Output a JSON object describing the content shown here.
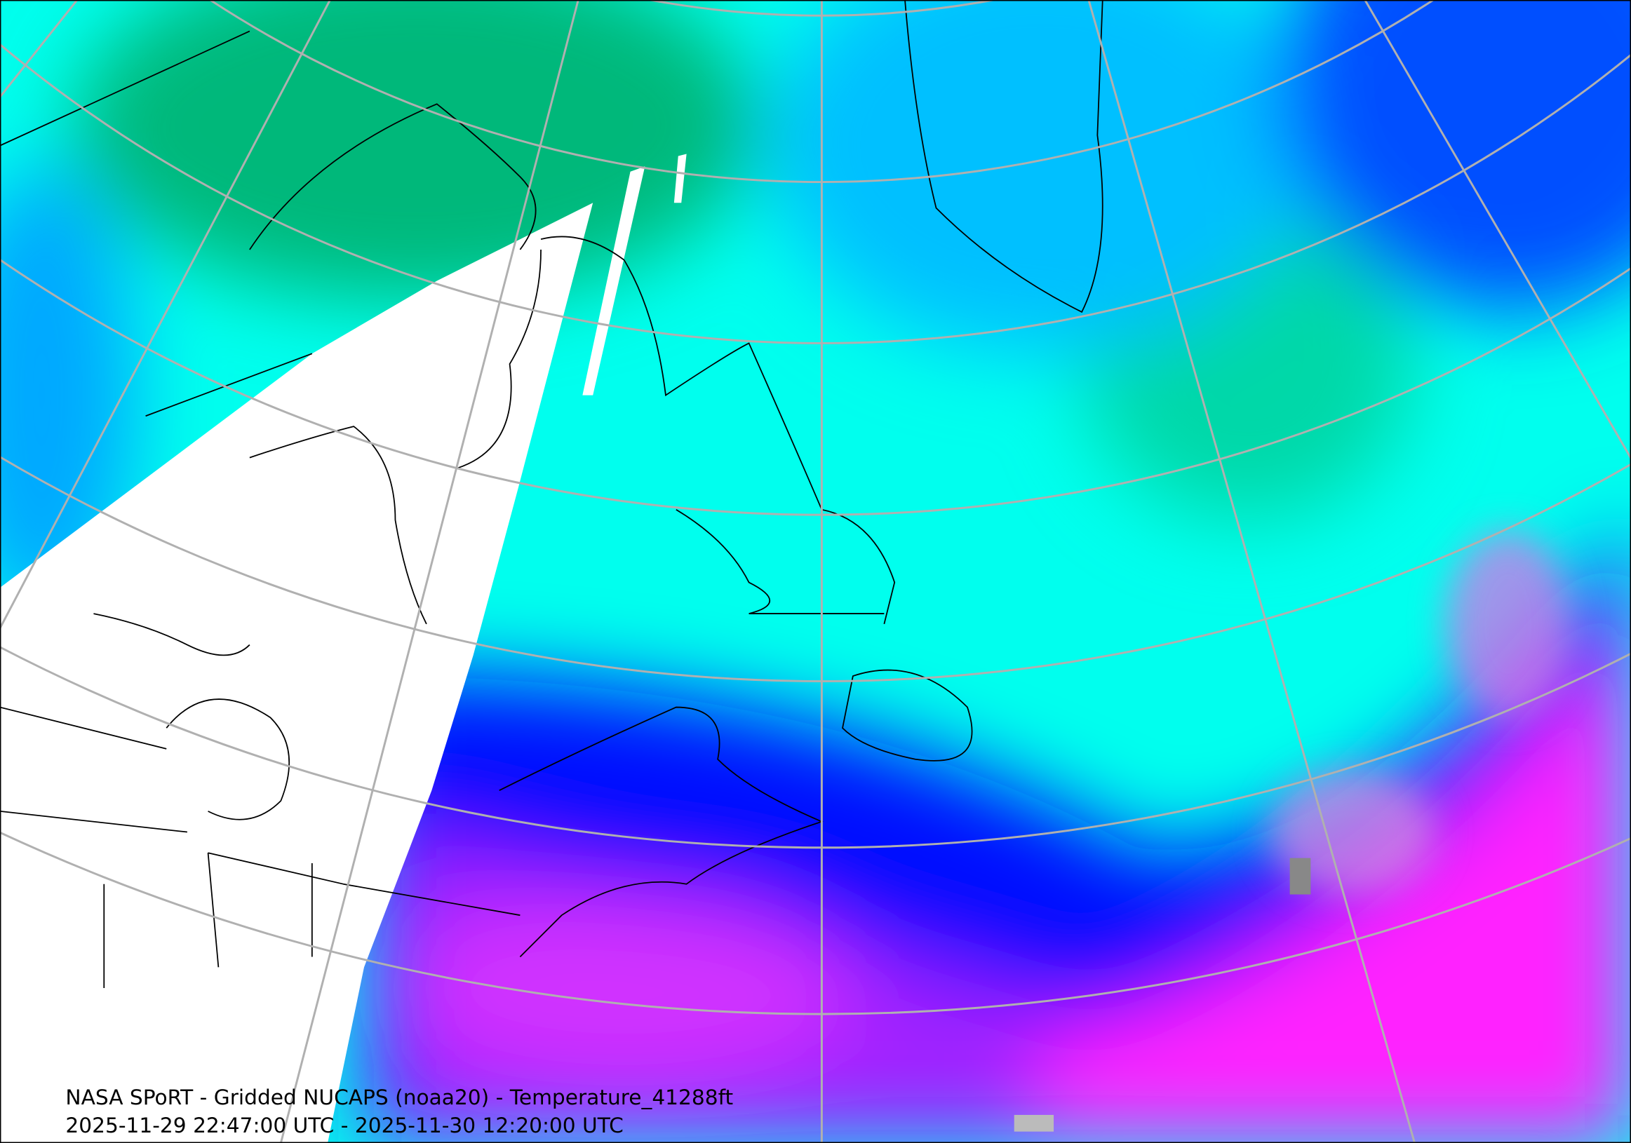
{
  "caption": {
    "title": "NASA SPoRT - Gridded NUCAPS (noaa20) - Temperature_41288ft",
    "time_range": "2025-11-29 22:47:00 UTC - 2025-11-30 12:20:00 UTC"
  }
}
